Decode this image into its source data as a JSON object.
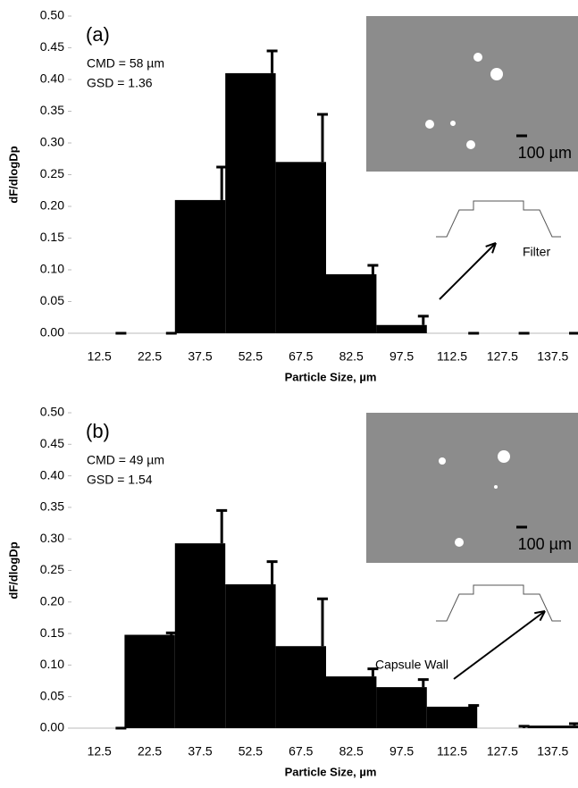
{
  "chart_data": [
    {
      "type": "bar",
      "panel_label": "(a)",
      "annotations": [
        "CMD = 58 µm",
        "GSD = 1.36"
      ],
      "scale_label": "100 µm",
      "inset_label": "Filter",
      "ylabel": "dF/dlogDp",
      "xlabel": "Particle Size, µm",
      "categories": [
        "12.5",
        "22.5",
        "37.5",
        "52.5",
        "67.5",
        "82.5",
        "97.5",
        "112.5",
        "127.5",
        "137.5"
      ],
      "values": [
        0,
        0,
        0.21,
        0.41,
        0.27,
        0.093,
        0.013,
        0,
        0,
        0
      ],
      "errors": [
        0,
        0,
        0.052,
        0.035,
        0.075,
        0.014,
        0.014,
        0,
        0,
        0
      ],
      "color": "#000000",
      "ylim": [
        0,
        0.5
      ],
      "yticks": [
        {
          "value": 0,
          "label": "0.00"
        },
        {
          "value": 0.05,
          "label": "0.05"
        },
        {
          "value": 0.1,
          "label": "0.10"
        },
        {
          "value": 0.15,
          "label": "0.15"
        },
        {
          "value": 0.2,
          "label": "0.20"
        },
        {
          "value": 0.25,
          "label": "0.25"
        },
        {
          "value": 0.3,
          "label": "0.30"
        },
        {
          "value": 0.35,
          "label": "0.35"
        },
        {
          "value": 0.4,
          "label": "0.40"
        },
        {
          "value": 0.45,
          "label": "0.45"
        },
        {
          "value": 0.5,
          "label": "0.50"
        }
      ]
    },
    {
      "type": "bar",
      "panel_label": "(b)",
      "annotations": [
        "CMD = 49 µm",
        "GSD = 1.54"
      ],
      "scale_label": "100 µm",
      "inset_label": "Capsule Wall",
      "ylabel": "dF/dlogDp",
      "xlabel": "Particle Size, µm",
      "categories": [
        "12.5",
        "22.5",
        "37.5",
        "52.5",
        "67.5",
        "82.5",
        "97.5",
        "112.5",
        "127.5",
        "137.5"
      ],
      "values": [
        0,
        0.148,
        0.293,
        0.228,
        0.13,
        0.082,
        0.065,
        0.034,
        0,
        0.004
      ],
      "errors": [
        0,
        0.003,
        0.052,
        0.036,
        0.075,
        0.012,
        0.012,
        0.002,
        0.003,
        0.003
      ],
      "color": "#000000",
      "ylim": [
        0,
        0.5
      ],
      "yticks": [
        {
          "value": 0,
          "label": "0.00"
        },
        {
          "value": 0.05,
          "label": "0.05"
        },
        {
          "value": 0.1,
          "label": "0.10"
        },
        {
          "value": 0.15,
          "label": "0.15"
        },
        {
          "value": 0.2,
          "label": "0.20"
        },
        {
          "value": 0.25,
          "label": "0.25"
        },
        {
          "value": 0.3,
          "label": "0.30"
        },
        {
          "value": 0.35,
          "label": "0.35"
        },
        {
          "value": 0.4,
          "label": "0.40"
        },
        {
          "value": 0.45,
          "label": "0.45"
        },
        {
          "value": 0.5,
          "label": "0.50"
        }
      ]
    }
  ]
}
